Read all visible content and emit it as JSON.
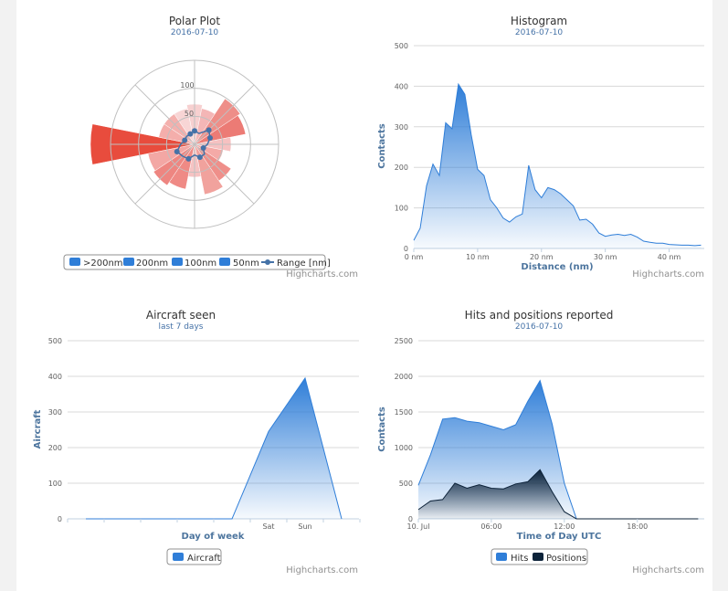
{
  "chart_data": [
    {
      "type": "polar",
      "title": "Polar Plot",
      "subtitle": "2016-07-10",
      "radial_ticks": [
        "50",
        "100"
      ],
      "sectors": 16,
      "series": [
        {
          "name": ">200nm",
          "color": "#2f7ed8",
          "values": [
            0,
            0,
            0,
            0,
            0,
            0,
            0,
            0,
            0,
            0,
            0,
            0,
            1,
            0,
            0,
            0
          ]
        },
        {
          "name": "200nm",
          "color": "#2f7ed8",
          "values": [
            0,
            0,
            0,
            0,
            0,
            0,
            0,
            0,
            0,
            0,
            0,
            0,
            0,
            0,
            0,
            0
          ]
        },
        {
          "name": "100nm",
          "color": "#2f7ed8",
          "values": [
            0,
            0,
            0,
            0,
            0,
            0,
            0,
            0,
            0,
            0,
            0,
            0,
            0,
            0,
            0,
            0
          ]
        },
        {
          "name": "50nm",
          "color": "#2f7ed8",
          "values": [
            0,
            0,
            0,
            0,
            0,
            0,
            0,
            0,
            0,
            0,
            0,
            0,
            0,
            0,
            0,
            0
          ]
        },
        {
          "name": "Range [nm]",
          "color": "#4572a7",
          "values": [
            24,
            21,
            36,
            30,
            23,
            17,
            25,
            25,
            19,
            28,
            30,
            34,
            25,
            19,
            20,
            20
          ]
        }
      ],
      "sector_colors": [
        "#f7d0d0",
        "#f4b6b6",
        "#ee8e88",
        "#ec7b75",
        "#f6c1c1",
        "#f4aaa7",
        "#ef8f8a",
        "#f1a29d",
        "#f6c3c3",
        "#ef8a85",
        "#ee8681",
        "#f3a7a4",
        "#e84c3d",
        "#f4aeab",
        "#f4b0ad",
        "#f8d5d5"
      ],
      "sector_radius": [
        44,
        40,
        60,
        57,
        40,
        32,
        48,
        56,
        36,
        50,
        54,
        52,
        114,
        40,
        40,
        40
      ],
      "legend": [
        ">200nm",
        "200nm",
        "100nm",
        "50nm",
        "Range [nm]"
      ],
      "credit": "Highcharts.com"
    },
    {
      "type": "area",
      "title": "Histogram",
      "subtitle": "2016-07-10",
      "xlabel": "Distance (nm)",
      "ylabel": "Contacts",
      "ylim": [
        0,
        500
      ],
      "y_ticks": [
        "0",
        "100",
        "200",
        "300",
        "400",
        "500"
      ],
      "xlim": [
        0,
        45.5
      ],
      "x_ticks": [
        {
          "v": 0,
          "label": "0 nm"
        },
        {
          "v": 10,
          "label": "10 nm"
        },
        {
          "v": 20,
          "label": "20 nm"
        },
        {
          "v": 30,
          "label": "30 nm"
        },
        {
          "v": 40,
          "label": "40 nm"
        }
      ],
      "x": [
        0,
        1,
        2,
        3,
        4,
        5,
        6,
        7,
        8,
        9,
        10,
        11,
        12,
        13,
        14,
        15,
        16,
        17,
        18,
        19,
        20,
        21,
        22,
        23,
        24,
        25,
        26,
        27,
        28,
        29,
        30,
        31,
        32,
        33,
        34,
        35,
        36,
        37,
        38,
        39,
        40,
        41,
        42,
        43,
        44,
        45
      ],
      "values": [
        20,
        50,
        155,
        208,
        180,
        310,
        295,
        405,
        380,
        280,
        195,
        180,
        120,
        100,
        75,
        65,
        78,
        85,
        205,
        145,
        125,
        150,
        145,
        135,
        120,
        105,
        70,
        72,
        60,
        38,
        30,
        33,
        35,
        32,
        35,
        28,
        18,
        15,
        13,
        13,
        10,
        9,
        8,
        8,
        7,
        8
      ],
      "credit": "Highcharts.com"
    },
    {
      "type": "area",
      "title": "Aircraft seen",
      "subtitle": "last 7 days",
      "xlabel": "Day of week",
      "ylabel": "Aircraft",
      "ylim": [
        0,
        500
      ],
      "y_ticks": [
        "0",
        "100",
        "200",
        "300",
        "400",
        "500"
      ],
      "categories": [
        "",
        "",
        "",
        "",
        "",
        "Sat",
        "Sun",
        ""
      ],
      "values": [
        0,
        0,
        0,
        0,
        0,
        245,
        395,
        0
      ],
      "series": [
        {
          "name": "Aircraft",
          "values": [
            0,
            0,
            0,
            0,
            0,
            245,
            395,
            0
          ]
        }
      ],
      "credit": "Highcharts.com"
    },
    {
      "type": "area",
      "title": "Hits and positions reported",
      "subtitle": "2016-07-10",
      "xlabel": "Time of Day UTC",
      "ylabel": "Contacts",
      "ylim": [
        0,
        2500
      ],
      "y_ticks": [
        "0",
        "500",
        "1000",
        "1500",
        "2000",
        "2500"
      ],
      "xlim": [
        0,
        23.5
      ],
      "x_ticks": [
        {
          "v": 0,
          "label": "10. Jul"
        },
        {
          "v": 6,
          "label": "06:00"
        },
        {
          "v": 12,
          "label": "12:00"
        },
        {
          "v": 18,
          "label": "18:00"
        }
      ],
      "x": [
        0,
        1,
        2,
        3,
        4,
        5,
        6,
        7,
        8,
        9,
        10,
        11,
        12,
        13,
        14,
        15,
        16,
        17,
        18,
        19,
        20,
        21,
        22,
        23
      ],
      "series": [
        {
          "name": "Hits",
          "color": "#2f7ed8",
          "values": [
            470,
            900,
            1400,
            1420,
            1370,
            1350,
            1300,
            1250,
            1320,
            1650,
            1940,
            1330,
            500,
            0,
            0,
            0,
            0,
            0,
            0,
            0,
            0,
            0,
            0,
            0
          ]
        },
        {
          "name": "Positions",
          "color": "#0d233a",
          "values": [
            130,
            250,
            270,
            500,
            430,
            480,
            430,
            420,
            490,
            520,
            690,
            380,
            100,
            0,
            0,
            0,
            0,
            0,
            0,
            0,
            0,
            0,
            0,
            0
          ]
        }
      ],
      "legend": [
        "Hits",
        "Positions"
      ],
      "credit": "Highcharts.com"
    }
  ]
}
